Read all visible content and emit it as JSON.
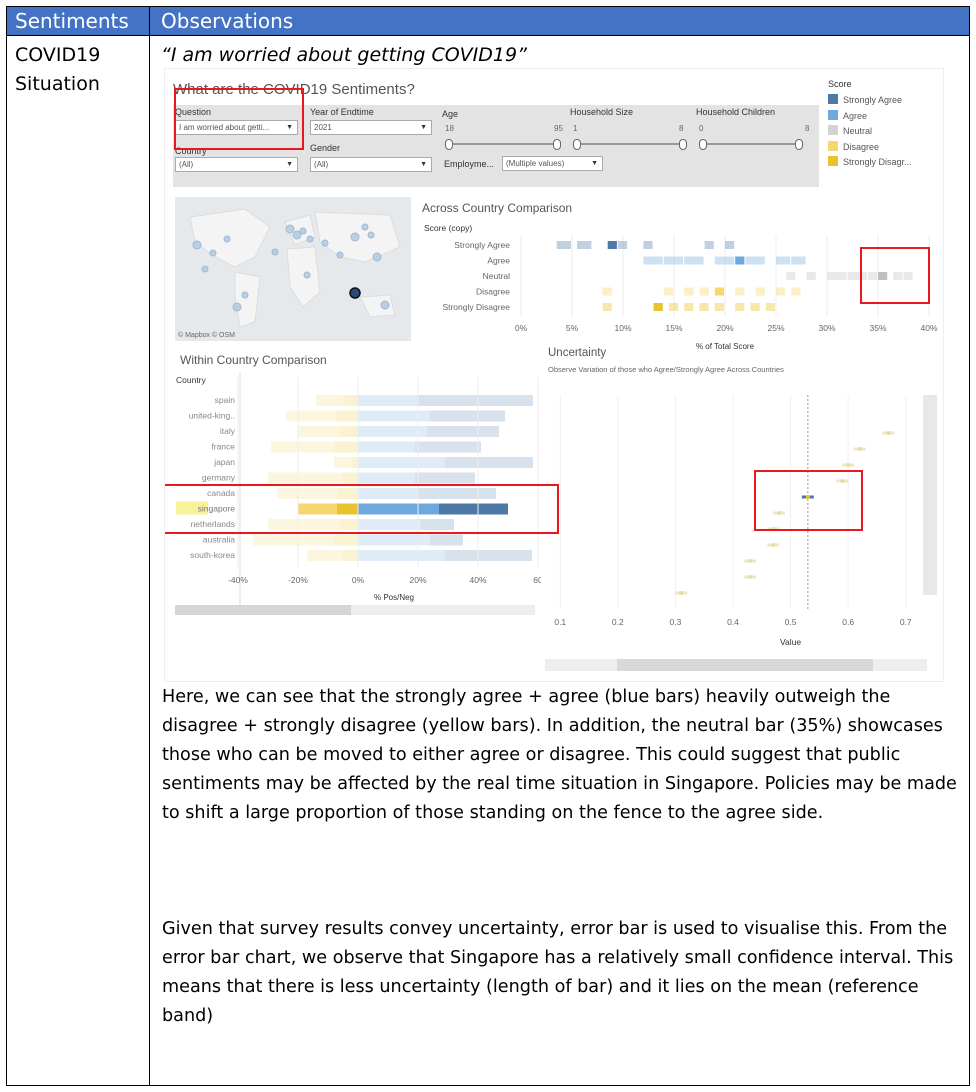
{
  "table": {
    "header": {
      "col1": "Sentiments",
      "col2": "Observations"
    },
    "row_label": {
      "line1": "COVID19",
      "line2": "Situation"
    },
    "quote": "“I am worried about getting COVID19”",
    "paragraph1": "Here, we can see that the strongly agree + agree (blue bars) heavily outweigh the disagree + strongly disagree (yellow bars). In addition, the neutral bar (35%) showcases those who can be moved to either agree or disagree. This could suggest that public sentiments may be affected by the real time situation in Singapore. Policies may be made to shift a large proportion of those standing on the fence to the agree side.",
    "paragraph2": "Given that survey results convey uncertainty, error bar is used to visualise this. From the error bar chart, we observe that Singapore has a relatively small confidence interval. This means that there is less uncertainty (length of bar) and it lies on the mean (reference band)"
  },
  "dashboard": {
    "title": "What are the COVID19 Sentiments?",
    "filters": {
      "question_label": "Question",
      "question_value": "I am worried about getti...",
      "year_label": "Year of Endtime",
      "year_value": "2021",
      "age_label": "Age",
      "age_min": "18",
      "age_max": "95",
      "hh_size_label": "Household Size",
      "hh_size_min": "1",
      "hh_size_max": "8",
      "hh_children_label": "Household Children",
      "hh_children_min": "0",
      "hh_children_max": "8",
      "country_label": "Country",
      "country_value": "(All)",
      "gender_label": "Gender",
      "gender_value": "(All)",
      "employment_label": "Employme...",
      "employment_value": "(Multiple values)"
    },
    "legend": {
      "title": "Score",
      "items": [
        {
          "label": "Strongly Agree",
          "color": "#4e79a7"
        },
        {
          "label": "Agree",
          "color": "#6fa8dc"
        },
        {
          "label": "Neutral",
          "color": "#d3d3d3"
        },
        {
          "label": "Disagree",
          "color": "#f5d76e"
        },
        {
          "label": "Strongly Disagr...",
          "color": "#e8c32e"
        }
      ]
    },
    "map_credit": "© Mapbox  © OSM",
    "across": {
      "title": "Across Country Comparison",
      "row_header": "Score (copy)",
      "rows": [
        "Strongly Agree",
        "Agree",
        "Neutral",
        "Disagree",
        "Strongly Disagree"
      ],
      "x_ticks": [
        "0%",
        "5%",
        "10%",
        "15%",
        "20%",
        "25%",
        "30%",
        "35%",
        "40%"
      ],
      "x_title": "% of Total Score"
    },
    "within": {
      "title": "Within Country Comparison",
      "col_header": "Country",
      "countries": [
        "spain",
        "united-king..",
        "italy",
        "france",
        "japan",
        "germany",
        "canada",
        "singapore",
        "netherlands",
        "australia",
        "south-korea"
      ],
      "x_ticks": [
        "-40%",
        "-20%",
        "0%",
        "20%",
        "40%",
        "60"
      ],
      "x_title": "% Pos/Neg"
    },
    "uncertainty": {
      "title": "Uncertainty",
      "subtitle": "Observe Variation of those who Agree/Strongly Agree Across Countries",
      "x_ticks": [
        "0.1",
        "0.2",
        "0.3",
        "0.4",
        "0.5",
        "0.6",
        "0.7"
      ],
      "x_title": "Value"
    }
  },
  "chart_data": [
    {
      "type": "bar",
      "title": "Within Country Comparison",
      "xlabel": "% Pos/Neg",
      "categories": [
        "spain",
        "united-king..",
        "italy",
        "france",
        "japan",
        "germany",
        "canada",
        "singapore",
        "netherlands",
        "australia",
        "south-korea"
      ],
      "xlim": [
        -45,
        60
      ],
      "series": [
        {
          "name": "Strongly Disagr...",
          "values": [
            -5,
            -7,
            -6,
            -8,
            -2,
            -5,
            -7,
            -7,
            -6,
            -8,
            -5
          ]
        },
        {
          "name": "Disagree",
          "values": [
            -9,
            -17,
            -14,
            -21,
            -6,
            -25,
            -20,
            -13,
            -24,
            -27,
            -12
          ]
        },
        {
          "name": "Agree",
          "values": [
            20,
            24,
            23,
            19,
            29,
            19,
            20,
            27,
            21,
            24,
            29
          ]
        },
        {
          "name": "Strongly Agree",
          "values": [
            40,
            25,
            24,
            22,
            30,
            20,
            26,
            23,
            11,
            11,
            29
          ]
        }
      ]
    },
    {
      "type": "scatter",
      "title": "Uncertainty",
      "xlabel": "Value",
      "xlim": [
        0.07,
        0.73
      ],
      "points": [
        0.67,
        0.62,
        0.6,
        0.59,
        0.53,
        0.48,
        0.47,
        0.47,
        0.43,
        0.43,
        0.31
      ],
      "highlight_index": 4,
      "reference": 0.53
    }
  ]
}
